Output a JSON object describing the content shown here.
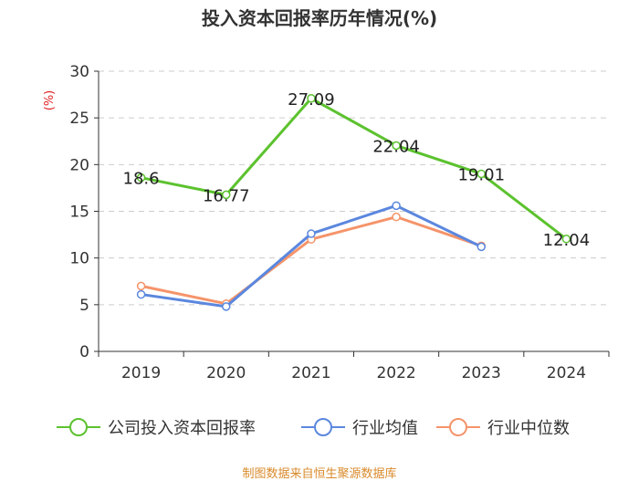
{
  "chart_data": {
    "type": "line",
    "title": "投入资本回报率历年情况(%)",
    "ylabel": "(%)",
    "xlabel": "",
    "categories": [
      "2019",
      "2020",
      "2021",
      "2022",
      "2023",
      "2024"
    ],
    "ylim": [
      0,
      30
    ],
    "yticks": [
      0,
      5,
      10,
      15,
      20,
      25,
      30
    ],
    "grid": true,
    "legend_position": "bottom",
    "series": [
      {
        "name": "公司投入资本回报率",
        "color": "#5cc22e",
        "values": [
          18.6,
          16.77,
          27.09,
          22.04,
          19.01,
          12.04
        ],
        "labels": [
          "18.6",
          "16.77",
          "27.09",
          "22.04",
          "19.01",
          "12.04"
        ]
      },
      {
        "name": "行业均值",
        "color": "#5b87de",
        "values": [
          6.1,
          4.8,
          12.6,
          15.6,
          11.2,
          null
        ]
      },
      {
        "name": "行业中位数",
        "color": "#f5946a",
        "values": [
          7.0,
          5.1,
          12.0,
          14.4,
          11.3,
          null
        ]
      }
    ]
  },
  "source": "制图数据来自恒生聚源数据库"
}
